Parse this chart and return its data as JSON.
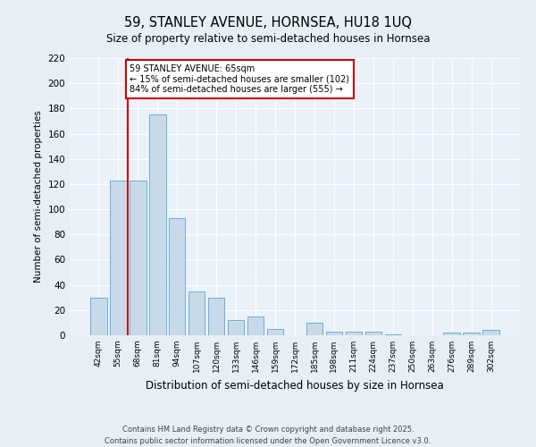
{
  "title1": "59, STANLEY AVENUE, HORNSEA, HU18 1UQ",
  "title2": "Size of property relative to semi-detached houses in Hornsea",
  "categories": [
    "42sqm",
    "55sqm",
    "68sqm",
    "81sqm",
    "94sqm",
    "107sqm",
    "120sqm",
    "133sqm",
    "146sqm",
    "159sqm",
    "172sqm",
    "185sqm",
    "198sqm",
    "211sqm",
    "224sqm",
    "237sqm",
    "250sqm",
    "263sqm",
    "276sqm",
    "289sqm",
    "302sqm"
  ],
  "values": [
    30,
    123,
    123,
    175,
    93,
    35,
    30,
    12,
    15,
    5,
    0,
    10,
    3,
    3,
    3,
    1,
    0,
    0,
    2,
    2,
    4
  ],
  "bar_color": "#c8daea",
  "bar_edge_color": "#6baed6",
  "ylabel": "Number of semi-detached properties",
  "xlabel": "Distribution of semi-detached houses by size in Hornsea",
  "ylim": [
    0,
    220
  ],
  "yticks": [
    0,
    20,
    40,
    60,
    80,
    100,
    120,
    140,
    160,
    180,
    200,
    220
  ],
  "vline_x": 1.5,
  "vline_color": "#cc0000",
  "annotation_title": "59 STANLEY AVENUE: 65sqm",
  "annotation_line1": "← 15% of semi-detached houses are smaller (102)",
  "annotation_line2": "84% of semi-detached houses are larger (555) →",
  "annotation_box_color": "#cc0000",
  "footer1": "Contains HM Land Registry data © Crown copyright and database right 2025.",
  "footer2": "Contains public sector information licensed under the Open Government Licence v3.0.",
  "bg_color": "#e8eef5",
  "plot_bg_color": "#eaf1f8"
}
